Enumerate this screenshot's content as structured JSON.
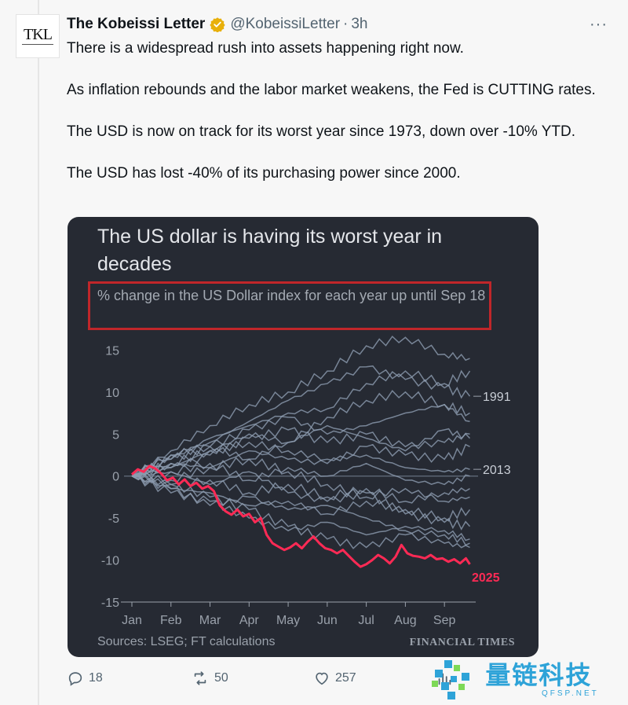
{
  "tweet": {
    "author_name": "The Kobeissi Letter",
    "handle": "@KobeissiLetter",
    "separator": "·",
    "time": "3h",
    "avatar_text": "TKL",
    "more_label": "···",
    "paragraphs": [
      "There is a widespread rush into assets happening right now.",
      "As inflation rebounds and the labor market weakens, the Fed is CUTTING rates.",
      "The USD is now on track for its worst year since 1973, down over -10% YTD.",
      "The USD has lost -40% of its purchasing power since 2000."
    ]
  },
  "card": {
    "title": "The US dollar is having its worst year in decades",
    "subtitle": "% change in the US Dollar index for each year up until Sep 18",
    "sources": "Sources: LSEG; FT calculations",
    "publisher": "FINANCIAL TIMES"
  },
  "actions": {
    "replies": "18",
    "reposts": "50",
    "likes": "257"
  },
  "watermark": {
    "cn": "量链科技",
    "en": "QFSP.NET"
  },
  "colors": {
    "card_bg": "#262a33",
    "highlight_red": "#c0262a",
    "series_2025": "#ff2a55",
    "series_other": "#8d9cb0",
    "accent_blue": "#2ea3d8"
  },
  "chart_data": {
    "type": "line",
    "title": "The US dollar is having its worst year in decades",
    "subtitle": "% change in the US Dollar index for each year up until Sep 18",
    "x_ticks": [
      "Jan",
      "Feb",
      "Mar",
      "Apr",
      "May",
      "Jun",
      "Jul",
      "Aug",
      "Sep"
    ],
    "y_ticks": [
      15,
      10,
      5,
      0,
      -5,
      -10,
      -15
    ],
    "ylim": [
      -15,
      17
    ],
    "xlim": [
      1,
      9.7
    ],
    "grid": "horizontal zero line only",
    "series": [
      {
        "name": "2025",
        "highlight": true,
        "x": [
          1.0,
          1.15,
          1.3,
          1.45,
          1.6,
          1.75,
          1.9,
          2.05,
          2.2,
          2.35,
          2.5,
          2.65,
          2.8,
          2.95,
          3.1,
          3.25,
          3.4,
          3.55,
          3.7,
          3.85,
          4.0,
          4.15,
          4.3,
          4.45,
          4.6,
          4.75,
          4.9,
          5.05,
          5.2,
          5.35,
          5.5,
          5.65,
          5.8,
          5.95,
          6.1,
          6.25,
          6.4,
          6.55,
          6.7,
          6.85,
          7.0,
          7.15,
          7.3,
          7.45,
          7.6,
          7.75,
          7.9,
          8.05,
          8.2,
          8.35,
          8.5,
          8.65,
          8.8,
          8.95,
          9.1,
          9.25,
          9.4,
          9.55,
          9.65
        ],
        "y": [
          0.2,
          0.8,
          0.5,
          1.2,
          0.9,
          0.3,
          -0.5,
          -0.2,
          -1.0,
          -0.4,
          -1.2,
          -0.8,
          -1.5,
          -1.2,
          -1.8,
          -3.5,
          -4.2,
          -4.6,
          -4.0,
          -4.8,
          -4.5,
          -5.5,
          -5.0,
          -7.0,
          -8.0,
          -8.4,
          -8.8,
          -8.5,
          -8.0,
          -8.6,
          -7.8,
          -7.2,
          -8.0,
          -8.6,
          -8.8,
          -9.2,
          -8.8,
          -9.5,
          -10.2,
          -10.8,
          -10.5,
          -10.0,
          -9.4,
          -9.8,
          -10.4,
          -9.6,
          -8.2,
          -9.2,
          -9.5,
          -9.6,
          -9.8,
          -9.4,
          -9.9,
          -9.8,
          -10.2,
          -9.9,
          -10.4,
          -9.8,
          -10.5
        ]
      },
      {
        "name": "1991",
        "x": [
          1.0,
          2.0,
          3.0,
          4.0,
          5.0,
          6.0,
          7.0,
          8.0,
          9.0,
          9.65
        ],
        "y": [
          0.0,
          2.5,
          4.0,
          6.5,
          9.0,
          11.0,
          13.0,
          11.5,
          10.5,
          9.5
        ]
      },
      {
        "name": "2013",
        "x": [
          1.0,
          2.0,
          3.0,
          4.0,
          5.0,
          6.0,
          7.0,
          8.0,
          9.0,
          9.65
        ],
        "y": [
          0.0,
          1.5,
          3.0,
          4.0,
          3.0,
          2.0,
          2.5,
          1.0,
          0.5,
          0.8
        ]
      },
      {
        "name": "",
        "x": [
          1.0,
          2.0,
          3.0,
          4.0,
          5.0,
          6.0,
          7.0,
          8.0,
          9.0,
          9.65
        ],
        "y": [
          0.0,
          3.0,
          6.0,
          8.5,
          10.0,
          12.5,
          15.5,
          16.5,
          14.5,
          14.0
        ]
      },
      {
        "name": "",
        "x": [
          1.0,
          2.0,
          3.0,
          4.0,
          5.0,
          6.0,
          7.0,
          8.0,
          9.0,
          9.65
        ],
        "y": [
          0.0,
          2.0,
          4.5,
          6.0,
          7.5,
          8.0,
          11.0,
          12.5,
          11.0,
          12.5
        ]
      },
      {
        "name": "",
        "x": [
          1.0,
          2.0,
          3.0,
          4.0,
          5.0,
          6.0,
          7.0,
          8.0,
          9.0,
          9.65
        ],
        "y": [
          0.0,
          2.0,
          3.5,
          5.5,
          7.0,
          5.0,
          6.0,
          7.5,
          8.5,
          6.5
        ]
      },
      {
        "name": "",
        "x": [
          1.0,
          2.0,
          3.0,
          4.0,
          5.0,
          6.0,
          7.0,
          8.0,
          9.0,
          9.65
        ],
        "y": [
          0.0,
          1.0,
          2.5,
          4.5,
          5.5,
          4.0,
          5.0,
          3.5,
          4.0,
          5.0
        ]
      },
      {
        "name": "",
        "x": [
          1.0,
          2.0,
          3.0,
          4.0,
          5.0,
          6.0,
          7.0,
          8.0,
          9.0,
          9.65
        ],
        "y": [
          0.0,
          1.5,
          1.0,
          3.0,
          2.0,
          1.5,
          3.5,
          2.5,
          2.0,
          3.5
        ]
      },
      {
        "name": "",
        "x": [
          1.0,
          2.0,
          3.0,
          4.0,
          5.0,
          6.0,
          7.0,
          8.0,
          9.0,
          9.65
        ],
        "y": [
          0.0,
          0.5,
          1.5,
          -0.5,
          1.0,
          0.0,
          1.5,
          -0.5,
          -1.0,
          0.0
        ]
      },
      {
        "name": "",
        "x": [
          1.0,
          2.0,
          3.0,
          4.0,
          5.0,
          6.0,
          7.0,
          8.0,
          9.0,
          9.65
        ],
        "y": [
          0.0,
          -1.0,
          -0.5,
          -2.0,
          -1.0,
          -2.5,
          -1.5,
          -3.0,
          -2.0,
          -1.5
        ]
      },
      {
        "name": "",
        "x": [
          1.0,
          2.0,
          3.0,
          4.0,
          5.0,
          6.0,
          7.0,
          8.0,
          9.0,
          9.65
        ],
        "y": [
          0.0,
          -1.5,
          -2.0,
          -3.5,
          -3.0,
          -4.5,
          -3.0,
          -4.0,
          -5.0,
          -4.0
        ]
      },
      {
        "name": "",
        "x": [
          1.0,
          2.0,
          3.0,
          4.0,
          5.0,
          6.0,
          7.0,
          8.0,
          9.0,
          9.65
        ],
        "y": [
          0.0,
          -2.0,
          -3.0,
          -5.0,
          -6.5,
          -5.5,
          -7.0,
          -6.0,
          -6.5,
          -7.5
        ]
      },
      {
        "name": "",
        "x": [
          1.0,
          2.0,
          3.0,
          4.0,
          5.0,
          6.0,
          7.0,
          8.0,
          9.0,
          9.65
        ],
        "y": [
          0.0,
          -1.0,
          -2.5,
          -4.0,
          -6.0,
          -7.5,
          -8.5,
          -7.0,
          -8.0,
          -8.5
        ]
      },
      {
        "name": "",
        "x": [
          1.0,
          2.0,
          3.0,
          4.0,
          5.0,
          6.0,
          7.0,
          8.0,
          9.0,
          9.65
        ],
        "y": [
          0.0,
          0.5,
          -1.0,
          0.5,
          -2.0,
          -3.0,
          -2.0,
          -4.5,
          -5.5,
          -6.0
        ]
      },
      {
        "name": "",
        "x": [
          1.0,
          2.0,
          3.0,
          4.0,
          5.0,
          6.0,
          7.0,
          8.0,
          9.0,
          9.65
        ],
        "y": [
          0.0,
          2.5,
          3.5,
          2.0,
          4.0,
          6.0,
          4.5,
          3.0,
          5.5,
          4.5
        ]
      },
      {
        "name": "",
        "x": [
          1.0,
          2.0,
          3.0,
          4.0,
          5.0,
          6.0,
          7.0,
          8.0,
          9.0,
          9.65
        ],
        "y": [
          0.0,
          -0.5,
          1.0,
          2.0,
          0.5,
          -1.0,
          -2.5,
          -1.5,
          -3.0,
          -2.5
        ]
      },
      {
        "name": "",
        "x": [
          1.0,
          2.0,
          3.0,
          4.0,
          5.0,
          6.0,
          7.0,
          8.0,
          9.0,
          9.65
        ],
        "y": [
          0.0,
          1.0,
          3.0,
          5.0,
          4.0,
          7.0,
          9.0,
          10.0,
          8.5,
          7.5
        ]
      },
      {
        "name": "",
        "x": [
          1.0,
          2.0,
          3.0,
          4.0,
          5.0,
          6.0,
          7.0,
          8.0,
          9.0,
          9.65
        ],
        "y": [
          0.0,
          -1.5,
          -3.5,
          -2.5,
          -4.0,
          -3.5,
          -5.0,
          -6.5,
          -7.0,
          -8.0
        ]
      }
    ]
  }
}
